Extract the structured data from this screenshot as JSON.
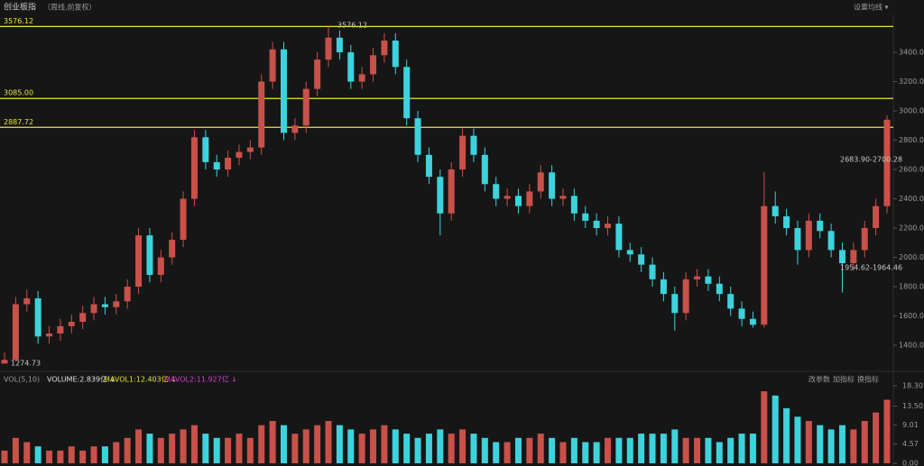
{
  "chart_data": {
    "type": "candlestick",
    "title": "创业板指",
    "subtitle": "（周线,前复权）",
    "menu": "设置均线 ▾",
    "up_color": "#c9514a",
    "down_color": "#3dd3dd",
    "line_color": "#e8e23a",
    "open": [
      1275,
      1300,
      1680,
      1720,
      1460,
      1480,
      1530,
      1560,
      1620,
      1680,
      1660,
      1700,
      1800,
      2150,
      1880,
      2000,
      2120,
      2400,
      2820,
      2650,
      2600,
      2680,
      2720,
      2750,
      3200,
      3420,
      2850,
      2900,
      3150,
      3350,
      3500,
      3400,
      3200,
      3250,
      3380,
      3480,
      3300,
      2950,
      2700,
      2550,
      2300,
      2600,
      2830,
      2700,
      2500,
      2400,
      2420,
      2350,
      2450,
      2580,
      2400,
      2420,
      2300,
      2250,
      2200,
      2230,
      2050,
      2020,
      1950,
      1850,
      1750,
      1620,
      1850,
      1870,
      1820,
      1750,
      1650,
      1580,
      1540,
      2350,
      2280,
      2200,
      2050,
      2250,
      2180,
      2050,
      1960,
      2050,
      2200,
      2350
    ],
    "high": [
      1350,
      1730,
      1780,
      1770,
      1530,
      1580,
      1610,
      1670,
      1730,
      1730,
      1750,
      1850,
      2200,
      2200,
      2050,
      2170,
      2450,
      2870,
      2870,
      2700,
      2730,
      2770,
      2800,
      3250,
      3470,
      3470,
      2950,
      3200,
      3400,
      3576.12,
      3550,
      3450,
      3300,
      3430,
      3530,
      3530,
      3350,
      3000,
      2750,
      2600,
      2650,
      2880,
      2880,
      2750,
      2550,
      2470,
      2470,
      2500,
      2630,
      2630,
      2470,
      2470,
      2350,
      2300,
      2280,
      2280,
      2100,
      2070,
      2000,
      1900,
      1800,
      1900,
      1920,
      1920,
      1870,
      1800,
      1700,
      1630,
      2580,
      2450,
      2330,
      2250,
      2300,
      2300,
      2230,
      2100,
      2100,
      2250,
      2400,
      2970
    ],
    "low": [
      1274.73,
      1290,
      1630,
      1410,
      1410,
      1430,
      1480,
      1510,
      1570,
      1610,
      1610,
      1650,
      1750,
      1830,
      1830,
      1950,
      2070,
      2350,
      2600,
      2550,
      2550,
      2630,
      2670,
      2700,
      3150,
      2800,
      2800,
      2850,
      3100,
      3300,
      3350,
      3150,
      3150,
      3200,
      3330,
      3250,
      2900,
      2650,
      2500,
      2150,
      2250,
      2550,
      2650,
      2450,
      2350,
      2350,
      2300,
      2300,
      2400,
      2350,
      2350,
      2250,
      2200,
      2150,
      2150,
      2000,
      1970,
      1900,
      1800,
      1700,
      1500,
      1570,
      1800,
      1770,
      1700,
      1600,
      1530,
      1520,
      1520,
      2230,
      2150,
      1950,
      2000,
      2130,
      2000,
      1760,
      1910,
      2000,
      2150,
      2300
    ],
    "close": [
      1300,
      1680,
      1720,
      1460,
      1480,
      1530,
      1560,
      1620,
      1680,
      1660,
      1700,
      1800,
      2150,
      1880,
      2000,
      2120,
      2400,
      2820,
      2650,
      2600,
      2680,
      2720,
      2750,
      3200,
      3420,
      2850,
      2900,
      3150,
      3350,
      3500,
      3400,
      3200,
      3250,
      3380,
      3480,
      3300,
      2950,
      2700,
      2550,
      2300,
      2600,
      2830,
      2700,
      2500,
      2400,
      2420,
      2350,
      2450,
      2580,
      2400,
      2420,
      2300,
      2250,
      2200,
      2230,
      2050,
      2020,
      1950,
      1850,
      1750,
      1620,
      1850,
      1870,
      1820,
      1750,
      1650,
      1580,
      1540,
      2350,
      2280,
      2200,
      2050,
      2250,
      2180,
      2050,
      1960,
      2050,
      2200,
      2350,
      2940
    ],
    "ylim": [
      1234,
      3634
    ],
    "yticks": [
      {
        "value": 1400,
        "label": "1400.00"
      },
      {
        "value": 1600,
        "label": "1600.00"
      },
      {
        "value": 1800,
        "label": "1800.00"
      },
      {
        "value": 2000,
        "label": "2000.00"
      },
      {
        "value": 2200,
        "label": "2200.00"
      },
      {
        "value": 2400,
        "label": "2400.00"
      },
      {
        "value": 2600,
        "label": "2600.00"
      },
      {
        "value": 2800,
        "label": "2800.00"
      },
      {
        "value": 3000,
        "label": "3000.00"
      },
      {
        "value": 3200,
        "label": "3200.00"
      },
      {
        "value": 3400,
        "label": "3400.00"
      }
    ],
    "hlines": [
      {
        "value": 3576.12,
        "label": "3576.12"
      },
      {
        "value": 3085,
        "label": "3085.00"
      },
      {
        "value": 2887.72,
        "label": "2887.72"
      }
    ],
    "annotations": [
      "3576.12",
      "1274.73",
      "2683.90-2700.28",
      "1954.62-1964.46"
    ],
    "volume": {
      "header": [
        "VOL(5,10)",
        "VOLUME:2.839亿 ↓",
        "MAVOL1:12.403亿 ↓",
        "MAVOL2:11.927亿 ↓"
      ],
      "buttons": [
        "改参数",
        "加指标",
        "换指标"
      ],
      "values": [
        3,
        6,
        5,
        4,
        3,
        3,
        4,
        3,
        4,
        4,
        5,
        6,
        8,
        7,
        6,
        7,
        8,
        9,
        7,
        6,
        6,
        7,
        6,
        9,
        10,
        9,
        7,
        8,
        9,
        10,
        9,
        8,
        7,
        8,
        9,
        8,
        7,
        6,
        7,
        8,
        7,
        8,
        7,
        6,
        5,
        5,
        6,
        6,
        7,
        6,
        5,
        6,
        5,
        5,
        6,
        6,
        6,
        7,
        7,
        7,
        8,
        6,
        6,
        6,
        5,
        6,
        7,
        7,
        17,
        16,
        13,
        11,
        10,
        9,
        8,
        9,
        8,
        10,
        12,
        15
      ],
      "ylim": [
        0,
        18.94
      ],
      "yticks": [
        {
          "value": 0,
          "label": "0.00"
        },
        {
          "value": 4.57,
          "label": "4.57"
        },
        {
          "value": 9.01,
          "label": "9.01"
        },
        {
          "value": 13.5,
          "label": "13.50"
        },
        {
          "value": 18.3,
          "label": "18.30"
        }
      ]
    }
  }
}
